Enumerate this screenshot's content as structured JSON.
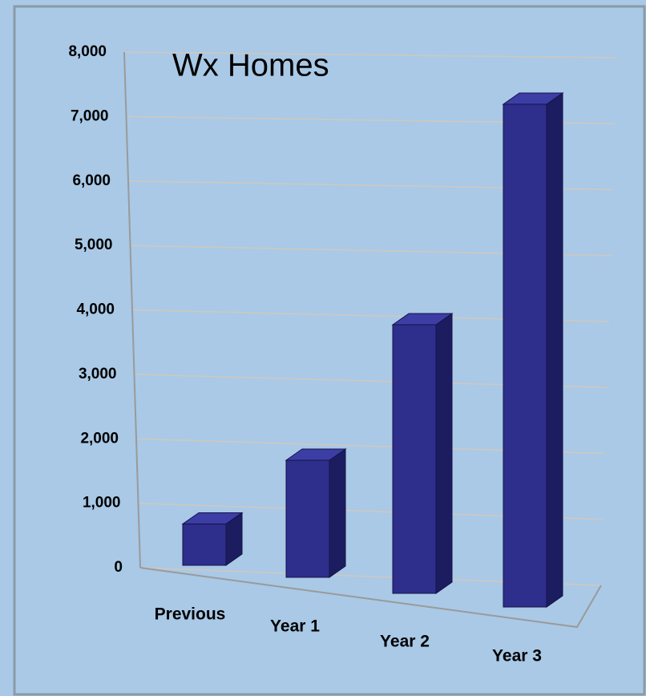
{
  "chart_data": {
    "type": "bar3d",
    "title": "Wx Homes",
    "categories": [
      "Previous",
      "Year 1",
      "Year 2",
      "Year 3"
    ],
    "values": [
      600,
      1700,
      3900,
      7300
    ],
    "color": "#2e2e8c",
    "ylim": [
      0,
      8000
    ],
    "yticks": [
      0,
      {
        "value": 1000,
        "label": "1,000"
      },
      {
        "value": 2000,
        "label": "2,000"
      },
      {
        "value": 3000,
        "label": "3,000"
      },
      {
        "value": 4000,
        "label": "4,000"
      },
      {
        "value": 5000,
        "label": "5,000"
      },
      {
        "value": 6000,
        "label": "6,000"
      },
      {
        "value": 7000,
        "label": "7,000"
      },
      {
        "value": 8000,
        "label": "8,000"
      }
    ],
    "grid": true
  }
}
